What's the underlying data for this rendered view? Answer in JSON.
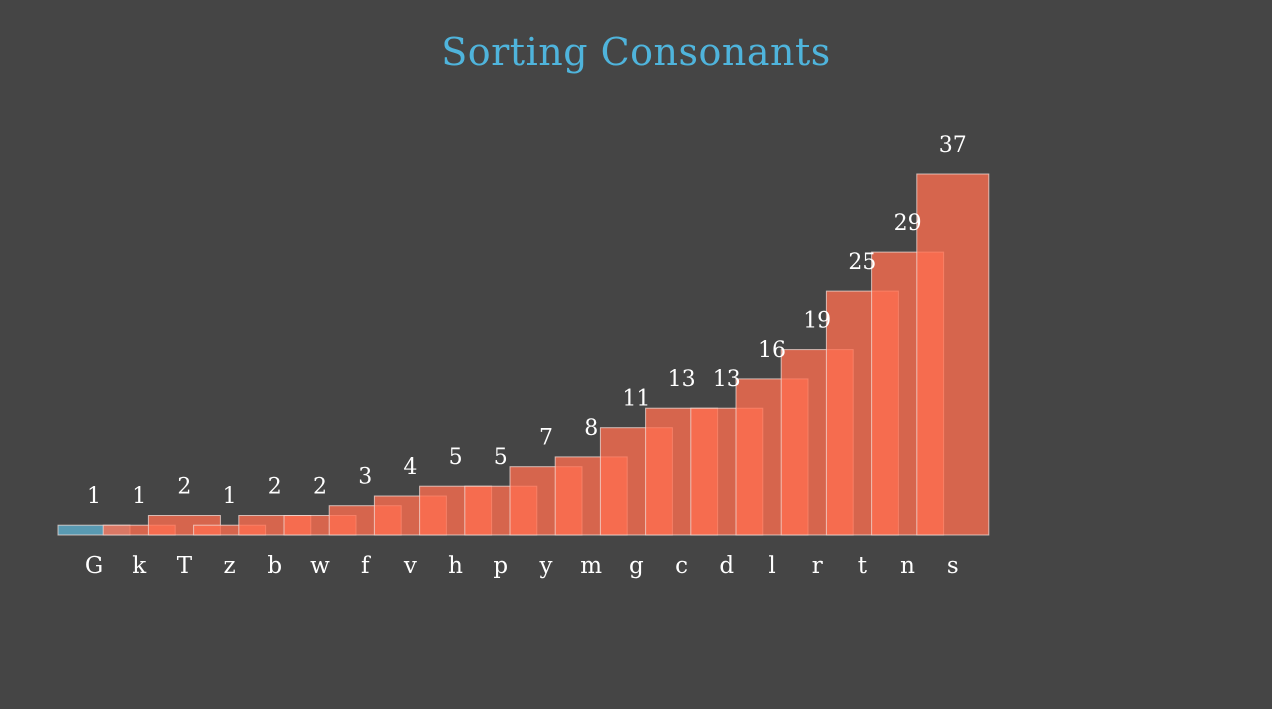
{
  "title": "Sorting Consonants",
  "colors": {
    "background": "#454545",
    "title": "#4fb4dc",
    "bar_highlight": "#5b9fb8",
    "bar_fill": "#ff6e4f",
    "bar_stroke": "#f2ded8",
    "label": "#ffffff"
  },
  "chart_data": {
    "type": "bar",
    "title": "Sorting Consonants",
    "categories": [
      "G",
      "k",
      "T",
      "z",
      "b",
      "w",
      "f",
      "v",
      "h",
      "p",
      "y",
      "m",
      "g",
      "c",
      "d",
      "l",
      "r",
      "t",
      "n",
      "s"
    ],
    "values": [
      1,
      1,
      2,
      1,
      2,
      2,
      3,
      4,
      5,
      5,
      7,
      8,
      11,
      13,
      13,
      16,
      19,
      25,
      29,
      37
    ],
    "highlighted_index": 0,
    "ylim": [
      0,
      37
    ],
    "xlabel": "",
    "ylabel": "",
    "grid": false,
    "legend": "none",
    "data_labels": true
  }
}
